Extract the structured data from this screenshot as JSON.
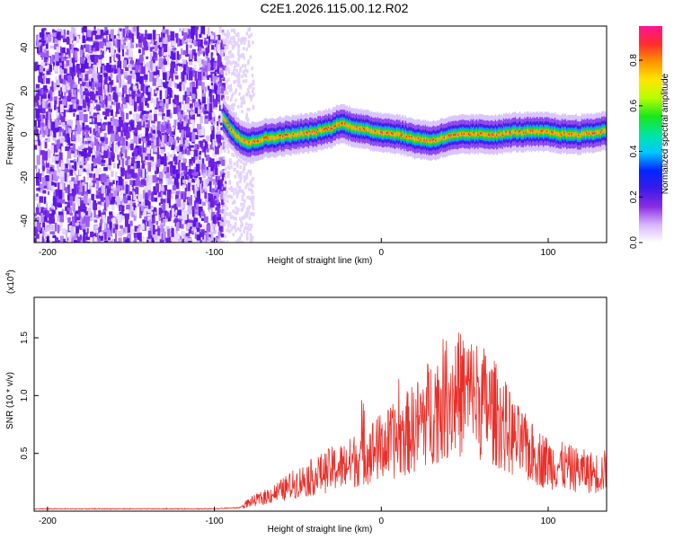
{
  "title": "C2E1.2026.115.00.12.R02",
  "chart_data": [
    {
      "type": "heatmap",
      "xlabel": "Height of straight line (km)",
      "ylabel": "Frequency (Hz)",
      "xlim": [
        -208,
        135
      ],
      "ylim": [
        -50,
        50
      ],
      "xticks": [
        -200,
        -100,
        0,
        100
      ],
      "yticks": [
        -40,
        -20,
        0,
        20,
        40
      ],
      "noise_region_x_range": [
        -208,
        -95
      ],
      "signal_trace": {
        "x": [
          -95,
          -90,
          -85,
          -80,
          -70,
          -60,
          -50,
          -40,
          -30,
          -25,
          -20,
          -10,
          0,
          10,
          20,
          30,
          40,
          50,
          60,
          70,
          80,
          90,
          100,
          110,
          120,
          130,
          135
        ],
        "y": [
          8,
          2,
          -2,
          -4,
          -2,
          -1,
          0,
          1,
          3,
          5,
          4,
          2,
          1,
          0,
          -2,
          -3,
          -1,
          0,
          0,
          0,
          1,
          1,
          1,
          0,
          0,
          1,
          2
        ]
      },
      "colorbar": {
        "label": "Normalized spectral amplitude",
        "range": [
          0.0,
          0.95
        ],
        "ticks": [
          "0.0",
          "0.2",
          "0.4",
          "0.6",
          "0.8"
        ],
        "colors": [
          "#ffffff",
          "#d8b4ff",
          "#8a2be2",
          "#3a1ae8",
          "#0026ff",
          "#00c8ff",
          "#00e6a0",
          "#19e619",
          "#b4ff00",
          "#ffe600",
          "#ff9600",
          "#ff2d2d",
          "#ff1493"
        ]
      }
    },
    {
      "type": "line",
      "xlabel": "Height of straight line (km)",
      "ylabel": "SNR (10 * v/v)",
      "yscale_label": "(x10",
      "yscale_exp": "4",
      "yscale_close": ")",
      "xlim": [
        -208,
        135
      ],
      "ylim": [
        0,
        1.85
      ],
      "xticks": [
        -200,
        -100,
        0,
        100
      ],
      "yticks": [
        "0.5",
        "1.0",
        "1.5"
      ],
      "color": "#e8302a",
      "series": [
        {
          "x": [
            -208,
            -150,
            -100,
            -85,
            -80,
            -70,
            -60,
            -50,
            -40,
            -30,
            -20,
            -10,
            0,
            10,
            20,
            30,
            40,
            50,
            60,
            70,
            80,
            90,
            100,
            110,
            120,
            130,
            135
          ],
          "values": [
            0.02,
            0.02,
            0.02,
            0.03,
            0.07,
            0.12,
            0.18,
            0.25,
            0.3,
            0.36,
            0.4,
            0.5,
            0.55,
            0.62,
            0.72,
            0.88,
            1.0,
            1.02,
            0.95,
            0.82,
            0.62,
            0.5,
            0.42,
            0.38,
            0.35,
            0.33,
            0.35
          ]
        }
      ]
    }
  ]
}
